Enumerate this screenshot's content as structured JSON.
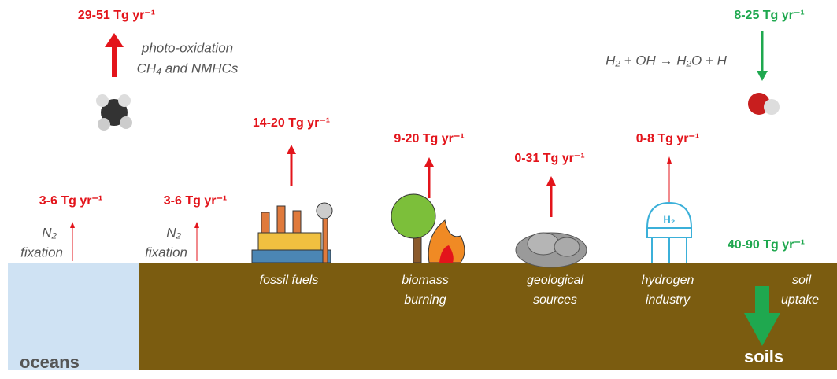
{
  "sinks_sources": {
    "photo_oxidation": {
      "flux": "29-51 Tg yr⁻¹",
      "lines": [
        "photo-oxidation",
        "CH₄ and NMHCs"
      ]
    },
    "oh_reaction": {
      "flux": "8-25 Tg yr⁻¹",
      "equation": "H₂ + OH → H₂O + H"
    },
    "fixation_ocean": {
      "flux": "3-6 Tg yr⁻¹",
      "lines": [
        "N₂",
        "fixation"
      ]
    },
    "fixation_land": {
      "flux": "3-6 Tg yr⁻¹",
      "lines": [
        "N₂",
        "fixation"
      ]
    },
    "fossil_fuels": {
      "flux": "14-20 Tg yr⁻¹",
      "lines": [
        "fossil fuels"
      ]
    },
    "biomass_burning": {
      "flux": "9-20 Tg yr⁻¹",
      "lines": [
        "biomass",
        "burning"
      ]
    },
    "geological_sources": {
      "flux": "0-31 Tg yr⁻¹",
      "lines": [
        "geological",
        "sources"
      ]
    },
    "hydrogen_industry": {
      "flux": "0-8 Tg yr⁻¹",
      "lines": [
        "hydrogen",
        "industry"
      ],
      "tank_label": "H₂"
    },
    "soil_uptake": {
      "flux": "40-90 Tg yr⁻¹",
      "lines": [
        "soil",
        "uptake"
      ]
    }
  },
  "regions": {
    "oceans": "oceans",
    "soils": "soils"
  }
}
